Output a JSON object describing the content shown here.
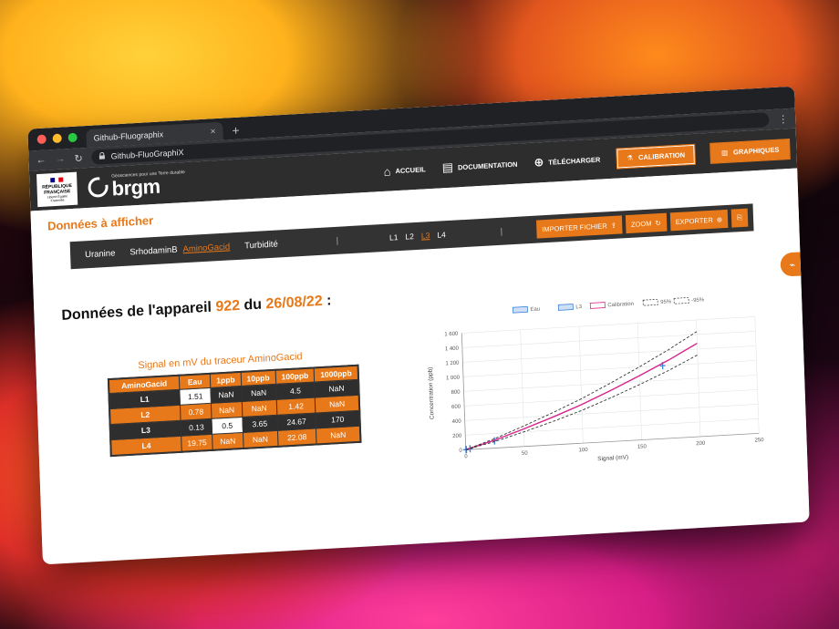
{
  "browser": {
    "tab_title": "Github-Fluographix",
    "tab_close": "×",
    "new_tab": "+",
    "address": "Github-FluoGraphiX",
    "menu": "⋮"
  },
  "header": {
    "rf_lines": [
      "RÉPUBLIQUE",
      "FRANÇAISE"
    ],
    "rf_motto": "Liberté Égalité Fraternité",
    "brand_tagline": "Géosciences pour une Terre durable",
    "brand_name": "brgm",
    "nav": {
      "accueil": "ACCUEIL",
      "documentation": "DOCUMENTATION",
      "telecharger": "TÉLÉCHARGER",
      "calibration": "CALIBRATION",
      "graphiques": "GRAPHIQUES"
    }
  },
  "main": {
    "section_title": "Données à afficher",
    "tracer_tabs": [
      "Uranine",
      "SrhodaminB",
      "AminoGacid",
      "Turbidité"
    ],
    "active_tracer": "AminoGacid",
    "separator": "|",
    "l_tabs": [
      "L1",
      "L2",
      "L3",
      "L4"
    ],
    "active_l": "L3",
    "buttons": {
      "import": "IMPORTER FICHIER",
      "zoom": "ZOOM",
      "export": "EXPORTER"
    },
    "device_title_prefix": "Données de l'appareil",
    "device_id": "922",
    "device_title_mid": "du",
    "device_date": "26/08/22",
    "device_title_suffix": ":"
  },
  "table": {
    "title": "Signal en mV du traceur AminoGacid",
    "headers": [
      "AminoGacid",
      "Eau",
      "1ppb",
      "10ppb",
      "100ppb",
      "1000ppb"
    ],
    "rows": [
      {
        "label": "L1",
        "cells": [
          "1.51",
          "NaN",
          "NaN",
          "4.5",
          "NaN"
        ]
      },
      {
        "label": "L2",
        "cells": [
          "0.78",
          "NaN",
          "NaN",
          "1.42",
          "NaN"
        ]
      },
      {
        "label": "L3",
        "cells": [
          "0.13",
          "0.5",
          "3.65",
          "24.67",
          "170"
        ]
      },
      {
        "label": "L4",
        "cells": [
          "19.75",
          "NaN",
          "NaN",
          "22.08",
          "NaN"
        ]
      }
    ]
  },
  "colors": {
    "accent": "#e8791a",
    "dark": "#2d2d2d",
    "calibration": "#d6238b",
    "points": "#3b82d6"
  },
  "chart_data": {
    "type": "line",
    "legend": [
      "Eau",
      "L3",
      "Calibration",
      "95%",
      "-95%"
    ],
    "legend_position": "top",
    "xlabel": "Signal (mV)",
    "ylabel": "Concentration (ppb)",
    "xlim": [
      0,
      250
    ],
    "ylim": [
      0,
      1600
    ],
    "xticks": [
      0,
      50,
      100,
      150,
      200,
      250
    ],
    "yticks": [
      0,
      200,
      400,
      600,
      800,
      1000,
      1200,
      1400,
      1600
    ],
    "grid": true,
    "series": [
      {
        "name": "Eau",
        "points": [
          [
            0.13,
            0
          ]
        ]
      },
      {
        "name": "L3",
        "points": [
          [
            0.5,
            1
          ],
          [
            3.65,
            10
          ],
          [
            24.67,
            100
          ],
          [
            170,
            1000
          ]
        ]
      },
      {
        "name": "Calibration",
        "x": [
          0,
          25,
          50,
          75,
          100,
          125,
          150,
          175,
          200
        ],
        "y": [
          0,
          110,
          240,
          380,
          530,
          700,
          880,
          1070,
          1280
        ]
      },
      {
        "name": "95%",
        "x": [
          0,
          25,
          50,
          75,
          100,
          125,
          150,
          175,
          200
        ],
        "y": [
          0,
          130,
          280,
          440,
          610,
          800,
          1000,
          1210,
          1440
        ]
      },
      {
        "name": "-95%",
        "x": [
          0,
          25,
          50,
          75,
          100,
          125,
          150,
          175,
          200
        ],
        "y": [
          0,
          90,
          200,
          320,
          450,
          600,
          760,
          930,
          1120
        ]
      }
    ]
  }
}
